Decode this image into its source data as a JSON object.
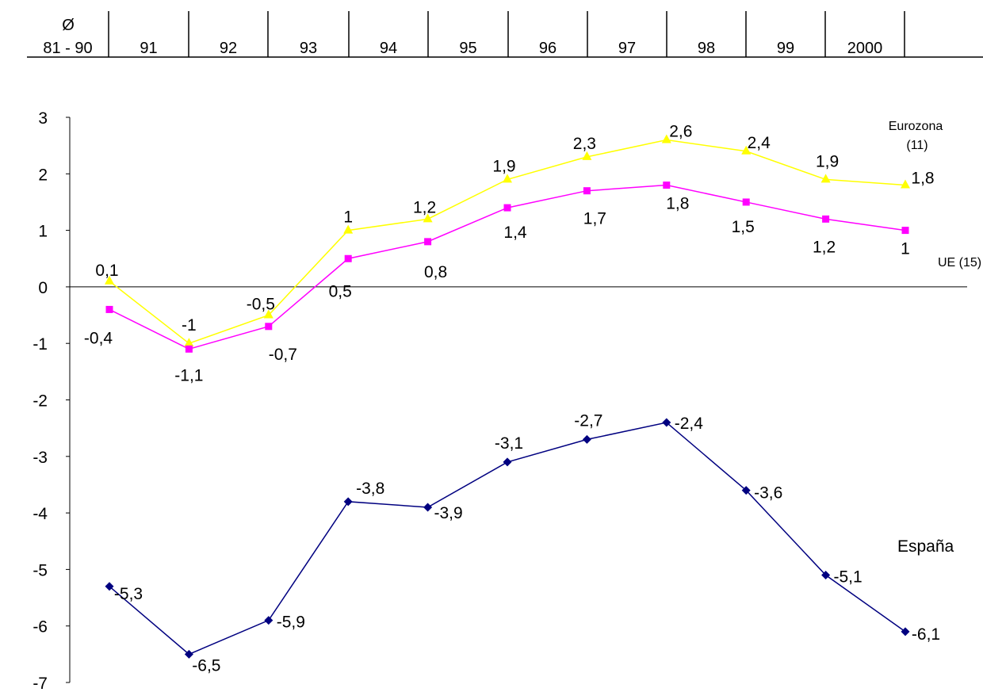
{
  "chart_data": {
    "type": "line",
    "header": {
      "diameter_symbol": "Ø",
      "columns": [
        "81 - 90",
        "91",
        "92",
        "93",
        "94",
        "95",
        "96",
        "97",
        "98",
        "99",
        "2000"
      ]
    },
    "ylim": [
      -7,
      3
    ],
    "yticks": [
      "3",
      "2",
      "1",
      "0",
      "-1",
      "-2",
      "-3",
      "-4",
      "-5",
      "-6",
      "-7"
    ],
    "series": [
      {
        "name": "Eurozona (11)",
        "label_lines": [
          "Eurozona",
          "(11)"
        ],
        "color": "#ffff00",
        "marker": "triangle",
        "values": [
          0.1,
          -1,
          -0.5,
          1,
          1.2,
          1.9,
          2.3,
          2.6,
          2.4,
          1.9,
          1.8
        ],
        "labels": [
          "0,1",
          "-1",
          "-0,5",
          "1",
          "1,2",
          "1,9",
          "2,3",
          "2,6",
          "2,4",
          "1,9",
          "1,8"
        ]
      },
      {
        "name": "UE (15)",
        "color": "#ff00ff",
        "marker": "square",
        "values": [
          -0.4,
          -1.1,
          -0.7,
          0.5,
          0.8,
          1.4,
          1.7,
          1.8,
          1.5,
          1.2,
          1
        ],
        "labels": [
          "-0,4",
          "-1,1",
          "-0,7",
          "0,5",
          "0,8",
          "1,4",
          "1,7",
          "1,8",
          "1,5",
          "1,2",
          "1"
        ]
      },
      {
        "name": "España",
        "color": "#000080",
        "marker": "diamond",
        "values": [
          -5.3,
          -6.5,
          -5.9,
          -3.8,
          -3.9,
          -3.1,
          -2.7,
          -2.4,
          -3.6,
          -5.1,
          -6.1
        ],
        "labels": [
          "-5,3",
          "-6,5",
          "-5,9",
          "-3,8",
          "-3,9",
          "-3,1",
          "-2,7",
          "-2,4",
          "-3,6",
          "-5,1",
          "-6,1"
        ]
      }
    ]
  }
}
